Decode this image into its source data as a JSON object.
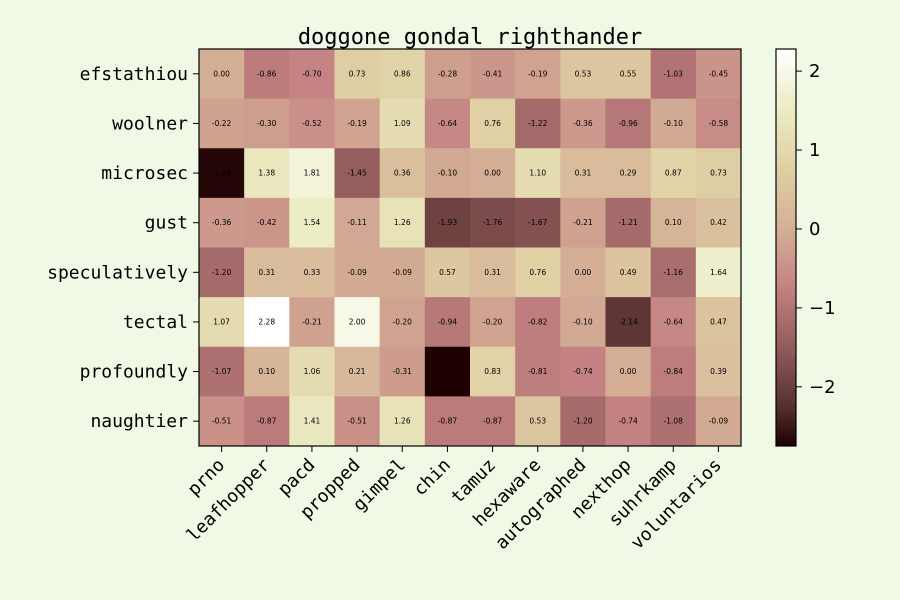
{
  "chart_data": {
    "type": "heatmap",
    "title": "doggone gondal righthander",
    "xlabel": "",
    "ylabel": "",
    "x_categories": [
      "prno",
      "leafhopper",
      "pacd",
      "propped",
      "gimpel",
      "chin",
      "tamuz",
      "hexaware",
      "autographed",
      "nexthop",
      "suhrkamp",
      "voluntarios"
    ],
    "y_categories": [
      "efstathiou",
      "woolner",
      "microsec",
      "gust",
      "speculatively",
      "tectal",
      "profoundly",
      "naughtier"
    ],
    "values": [
      [
        0.0,
        -0.86,
        -0.7,
        0.73,
        0.86,
        -0.28,
        -0.41,
        -0.19,
        0.53,
        0.55,
        -1.03,
        -0.45
      ],
      [
        -0.22,
        -0.3,
        -0.52,
        -0.19,
        1.09,
        -0.64,
        0.76,
        -1.22,
        -0.36,
        -0.96,
        -0.1,
        -0.58
      ],
      [
        -2.68,
        1.38,
        1.81,
        -1.45,
        0.36,
        -0.1,
        0.0,
        1.1,
        0.31,
        0.29,
        0.87,
        0.73
      ],
      [
        -0.36,
        -0.42,
        1.54,
        -0.11,
        1.26,
        -1.93,
        -1.76,
        -1.67,
        -0.21,
        -1.21,
        0.1,
        0.42
      ],
      [
        -1.2,
        0.31,
        0.33,
        -0.09,
        -0.09,
        0.57,
        0.31,
        0.76,
        0.0,
        0.49,
        -1.16,
        1.64
      ],
      [
        1.07,
        2.28,
        -0.21,
        2.0,
        -0.2,
        -0.94,
        -0.2,
        -0.82,
        -0.1,
        -2.14,
        -0.64,
        0.47
      ],
      [
        -1.07,
        0.1,
        1.06,
        0.21,
        -0.31,
        -2.75,
        0.83,
        -0.81,
        -0.74,
        0.0,
        -0.84,
        0.39
      ],
      [
        -0.51,
        -0.87,
        1.41,
        -0.51,
        1.26,
        -0.87,
        -0.87,
        0.53,
        -1.2,
        -0.74,
        -1.08,
        -0.09
      ]
    ],
    "value_labels": [
      [
        "0.00",
        "-0.86",
        "-0.70",
        "0.73",
        "0.86",
        "-0.28",
        "-0.41",
        "-0.19",
        "0.53",
        "0.55",
        "-1.03",
        "-0.45"
      ],
      [
        "-0.22",
        "-0.30",
        "-0.52",
        "-0.19",
        "1.09",
        "-0.64",
        "0.76",
        "-1.22",
        "-0.36",
        "-0.96",
        "-0.10",
        "-0.58"
      ],
      [
        "-2.68",
        "1.38",
        "1.81",
        "-1.45",
        "0.36",
        "-0.10",
        "0.00",
        "1.10",
        "0.31",
        "0.29",
        "0.87",
        "0.73"
      ],
      [
        "-0.36",
        "-0.42",
        "1.54",
        "-0.11",
        "1.26",
        "-1.93",
        "-1.76",
        "-1.67",
        "-0.21",
        "-1.21",
        "0.10",
        "0.42"
      ],
      [
        "-1.20",
        "0.31",
        "0.33",
        "-0.09",
        "-0.09",
        "0.57",
        "0.31",
        "0.76",
        "0.00",
        "0.49",
        "-1.16",
        "1.64"
      ],
      [
        "1.07",
        "2.28",
        "-0.21",
        "2.00",
        "-0.20",
        "-0.94",
        "-0.20",
        "-0.82",
        "-0.10",
        "-2.14",
        "-0.64",
        "0.47"
      ],
      [
        "-1.07",
        "0.10",
        "1.06",
        "0.21",
        "-0.31",
        "",
        "0.83",
        "-0.81",
        "-0.74",
        "0.00",
        "-0.84",
        "0.39"
      ],
      [
        "-0.51",
        "-0.87",
        "1.41",
        "-0.51",
        "1.26",
        "-0.87",
        "-0.87",
        "0.53",
        "-1.20",
        "-0.74",
        "-1.08",
        "-0.09"
      ]
    ],
    "colorbar": {
      "vmin": -2.75,
      "vmax": 2.28,
      "ticks": [
        -2,
        -1,
        0,
        1,
        2
      ],
      "tick_labels": [
        "−2",
        "−1",
        "0",
        "1",
        "2"
      ]
    },
    "colormap": "pink",
    "grid": false,
    "legend": "colorbar-right"
  },
  "colors": {
    "background": "#f0f8e6",
    "axis": "#000000",
    "cell_text": "#000000"
  }
}
